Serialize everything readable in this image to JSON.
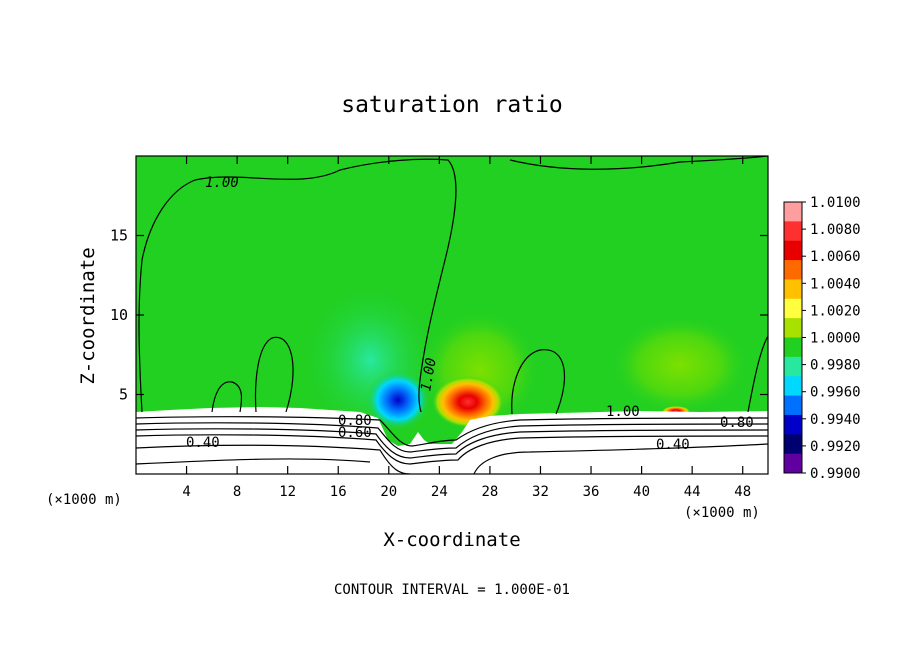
{
  "chart_data": {
    "type": "heatmap",
    "title": "saturation ratio",
    "xlabel": "X-coordinate",
    "ylabel": "Z-coordinate",
    "x_unit_left": "(×1000 m)",
    "x_unit_right": "(×1000 m)",
    "xlim": [
      0,
      50
    ],
    "ylim": [
      0,
      20
    ],
    "x_ticks": [
      "4",
      "8",
      "12",
      "16",
      "20",
      "24",
      "28",
      "32",
      "36",
      "40",
      "44",
      "48"
    ],
    "x_tick_values": [
      4,
      8,
      12,
      16,
      20,
      24,
      28,
      32,
      36,
      40,
      44,
      48
    ],
    "y_ticks": [
      "5",
      "10",
      "15"
    ],
    "y_tick_values": [
      5,
      10,
      15
    ],
    "footer": "CONTOUR INTERVAL = 1.000E-01",
    "colorbar": {
      "labels": [
        "1.0100",
        "1.0080",
        "1.0060",
        "1.0040",
        "1.0020",
        "1.0000",
        "0.9980",
        "0.9960",
        "0.9940",
        "0.9920",
        "0.9900"
      ],
      "values": [
        1.01,
        1.008,
        1.006,
        1.004,
        1.002,
        1.0,
        0.998,
        0.996,
        0.994,
        0.992,
        0.99
      ],
      "colors": [
        "#ff9e9e",
        "#ff3030",
        "#e80000",
        "#ff6a00",
        "#ffc000",
        "#ffff40",
        "#a8e000",
        "#22d022",
        "#28e8a0",
        "#00d8ff",
        "#0070ff",
        "#0000c8",
        "#000070",
        "#6000a0"
      ]
    },
    "contour_labels": [
      "1.00",
      "1.00",
      "1.00",
      "0.80",
      "0.60",
      "0.40",
      "0.40",
      "0.80"
    ],
    "contour_interval": 0.1
  }
}
